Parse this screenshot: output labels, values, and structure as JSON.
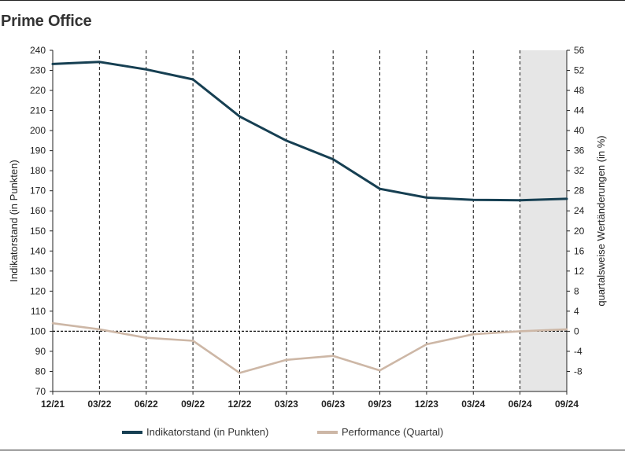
{
  "title": "Prime Office",
  "chart_data": {
    "type": "line",
    "categories": [
      "12/21",
      "03/22",
      "06/22",
      "09/22",
      "12/22",
      "03/23",
      "06/23",
      "09/23",
      "12/23",
      "03/24",
      "06/24",
      "09/24"
    ],
    "ylabel_left": "Indikatorstand (in Punkten)",
    "ylabel_right": "quartalsweise Wertänderungen (in %)",
    "ylim_left": [
      70,
      240
    ],
    "yticks_left": [
      70,
      80,
      90,
      100,
      110,
      120,
      130,
      140,
      150,
      160,
      170,
      180,
      190,
      200,
      210,
      220,
      230,
      240
    ],
    "ylim_right": [
      -12,
      56
    ],
    "yticks_right": [
      -8,
      -4,
      0,
      4,
      8,
      12,
      16,
      20,
      24,
      28,
      32,
      36,
      40,
      44,
      48,
      52,
      56
    ],
    "shaded_region": [
      "06/24",
      "09/24"
    ],
    "zero_line_right": 0,
    "series": [
      {
        "name": "Indikatorstand (in Punkten)",
        "axis": "left",
        "color": "#163f52",
        "values": [
          233.2,
          234.2,
          230.5,
          225.5,
          207,
          195,
          185.7,
          171,
          166.6,
          165.5,
          165.3,
          166
        ]
      },
      {
        "name": "Performance (Quartal)",
        "axis": "right",
        "color": "#cdb7a6",
        "values": [
          1.6,
          0.4,
          -1.3,
          -1.9,
          -8.3,
          -5.7,
          -4.9,
          -7.8,
          -2.6,
          -0.6,
          0.0,
          0.4
        ]
      }
    ],
    "legend": "bottom-center"
  }
}
